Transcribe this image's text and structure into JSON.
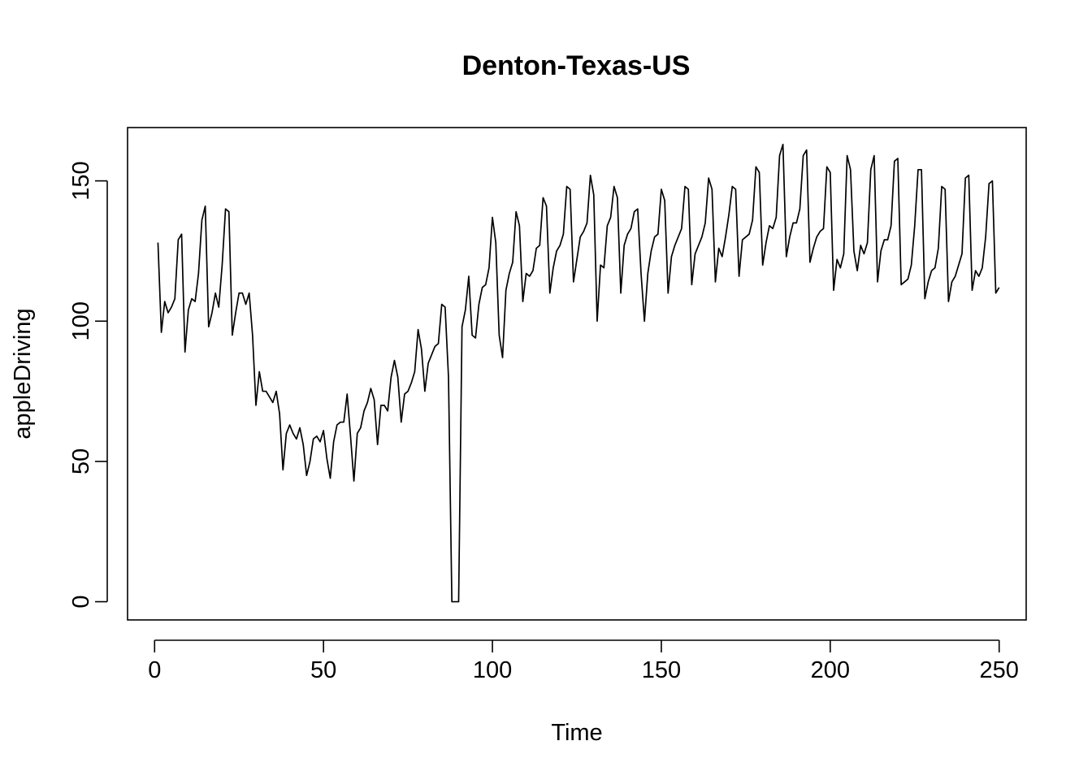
{
  "chart_data": {
    "type": "line",
    "title": "Denton-Texas-US",
    "xlabel": "Time",
    "ylabel": "appleDriving",
    "xlim": [
      -8,
      258
    ],
    "ylim": [
      -6.5,
      169
    ],
    "x_ticks": [
      0,
      50,
      100,
      150,
      200,
      250
    ],
    "y_ticks": [
      0,
      50,
      100,
      150
    ],
    "grid": false,
    "legend": "none",
    "line_color": "#000000",
    "series": [
      {
        "x_start": 1,
        "values": [
          128,
          96,
          107,
          103,
          105,
          108,
          129,
          131,
          89,
          104,
          108,
          107,
          117,
          136,
          141,
          98,
          103,
          110,
          105,
          120,
          140,
          139,
          95,
          103,
          110,
          110,
          106,
          110,
          95,
          70,
          82,
          75,
          75,
          73,
          71,
          75,
          67,
          47,
          60,
          63,
          60,
          58,
          62,
          56,
          45,
          50,
          58,
          59,
          57,
          61,
          51,
          44,
          57,
          63,
          64,
          64,
          74,
          59,
          43,
          60,
          62,
          68,
          71,
          76,
          72,
          56,
          70,
          70,
          68,
          80,
          86,
          80,
          64,
          74,
          75,
          78,
          82,
          97,
          90,
          75,
          85,
          88,
          91,
          92,
          106,
          105,
          80,
          0,
          0,
          0,
          98,
          104,
          116,
          95,
          94,
          106,
          112,
          113,
          119,
          137,
          128,
          95,
          87,
          111,
          117,
          121,
          139,
          134,
          107,
          117,
          116,
          118,
          126,
          127,
          144,
          141,
          110,
          119,
          125,
          127,
          131,
          148,
          147,
          114,
          122,
          130,
          132,
          135,
          152,
          145,
          100,
          120,
          119,
          134,
          137,
          148,
          144,
          110,
          127,
          131,
          133,
          139,
          140,
          117,
          100,
          117,
          125,
          130,
          131,
          147,
          143,
          110,
          123,
          127,
          130,
          133,
          148,
          147,
          113,
          124,
          127,
          130,
          135,
          151,
          147,
          114,
          126,
          123,
          130,
          138,
          148,
          147,
          116,
          129,
          130,
          131,
          136,
          155,
          153,
          120,
          128,
          134,
          133,
          137,
          159,
          163,
          123,
          130,
          135,
          135,
          140,
          159,
          161,
          121,
          126,
          130,
          132,
          133,
          155,
          153,
          111,
          122,
          119,
          124,
          159,
          154,
          125,
          118,
          127,
          124,
          128,
          154,
          159,
          114,
          125,
          129,
          129,
          134,
          157,
          158,
          113,
          114,
          115,
          120,
          134,
          154,
          154,
          108,
          114,
          118,
          119,
          126,
          148,
          147,
          107,
          114,
          116,
          120,
          124,
          151,
          152,
          111,
          118,
          116,
          119,
          130,
          149,
          150,
          110,
          112
        ]
      }
    ]
  }
}
